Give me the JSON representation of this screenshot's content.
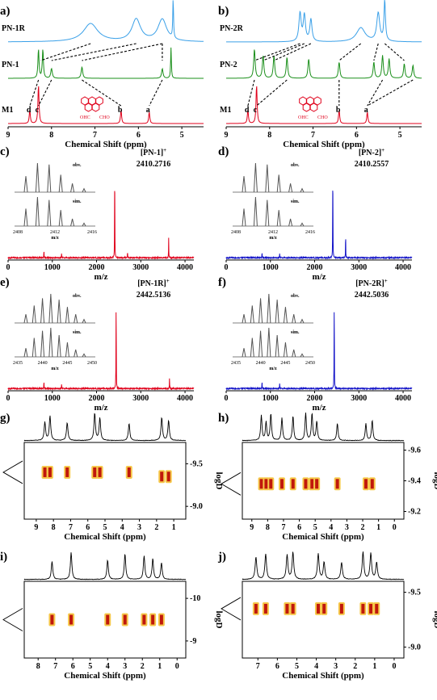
{
  "panels": {
    "a": {
      "label": "a)",
      "traces": [
        "PN-1R",
        "PN-1",
        "M1"
      ],
      "xticks": [
        "9",
        "8",
        "7",
        "6",
        "5"
      ],
      "xlabel": "Chemical Shift (ppm)",
      "peak_labels": [
        "d",
        "c",
        "b",
        "a"
      ],
      "struct_labels": [
        "OHC",
        "CHO"
      ]
    },
    "b": {
      "label": "b)",
      "traces": [
        "PN-2R",
        "PN-2",
        "M1"
      ],
      "xticks": [
        "9",
        "8",
        "7",
        "6",
        "5"
      ],
      "xlabel": "Chemical Shift (ppm)",
      "peak_labels": [
        "d",
        "c",
        "b",
        "a"
      ],
      "struct_labels": [
        "OHC",
        "CHO"
      ]
    },
    "c": {
      "label": "c)",
      "ion": "[PN-1]",
      "charge": "+",
      "mass": "2410.2716",
      "obv": "obv.",
      "sim": "sim.",
      "inset_xticks": [
        "2408",
        "2412",
        "2416"
      ],
      "inset_xlabel": "m/z",
      "xticks": [
        "0",
        "1000",
        "2000",
        "3000",
        "4000"
      ],
      "xlabel": "m/z"
    },
    "d": {
      "label": "d)",
      "ion": "[PN-2]",
      "charge": "+",
      "mass": "2410.2557",
      "obv": "obv.",
      "sim": "sim.",
      "inset_xticks": [
        "2408",
        "2412",
        "2416"
      ],
      "inset_xlabel": "m/z",
      "xticks": [
        "0",
        "1000",
        "2000",
        "3000",
        "4000"
      ],
      "xlabel": "m/z"
    },
    "e": {
      "label": "e)",
      "ion": "[PN-1R]",
      "charge": "+",
      "mass": "2442.5136",
      "obv": "obv.",
      "sim": "sim.",
      "inset_xticks": [
        "2435",
        "2440",
        "2445",
        "2450"
      ],
      "inset_xlabel": "m/z",
      "xticks": [
        "0",
        "1000",
        "2000",
        "3000",
        "4000"
      ],
      "xlabel": "m/z"
    },
    "f": {
      "label": "f)",
      "ion": "[PN-2R]",
      "charge": "+",
      "mass": "2442.5036",
      "obv": "obv.",
      "sim": "sim.",
      "inset_xticks": [
        "2435",
        "2440",
        "2445",
        "2450"
      ],
      "inset_xlabel": "m/z",
      "xticks": [
        "0",
        "1000",
        "2000",
        "3000",
        "4000"
      ],
      "xlabel": "m/z"
    },
    "g": {
      "label": "g)",
      "xticks": [
        "9",
        "8",
        "7",
        "6",
        "5",
        "4",
        "3",
        "2",
        "1"
      ],
      "yticks": [
        "-9.5",
        "-9.0"
      ],
      "ylabel": "logD",
      "xlabel": "Chemical Shift (ppm)"
    },
    "h": {
      "label": "h)",
      "xticks": [
        "9",
        "8",
        "7",
        "6",
        "5",
        "4",
        "3",
        "2",
        "1",
        "0"
      ],
      "yticks": [
        "-9.6",
        "-9.4",
        "-9.2"
      ],
      "ylabel": "logD",
      "xlabel": "Chemical Shift (ppm)"
    },
    "i": {
      "label": "i)",
      "xticks": [
        "8",
        "7",
        "6",
        "5",
        "4",
        "3",
        "2",
        "1",
        "0"
      ],
      "yticks": [
        "-10",
        "-9"
      ],
      "ylabel": "logD",
      "xlabel": "Chemical Shift (ppm)"
    },
    "j": {
      "label": "j)",
      "xticks": [
        "7",
        "6",
        "5",
        "4",
        "3",
        "2",
        "1",
        "0"
      ],
      "yticks": [
        "-9.5",
        "-9.0"
      ],
      "ylabel": "logD",
      "xlabel": "Chemical Shift (ppm)"
    }
  },
  "colors": {
    "red": "#e0001b",
    "green": "#1a8f1a",
    "lightblue": "#3aa0e8",
    "blue": "#1414c8",
    "gray": "#555555",
    "dosy_dark": "#c0180c",
    "dosy_light": "#f6c84a"
  },
  "chart_data": [
    {
      "panel": "a",
      "type": "line",
      "series": [
        {
          "name": "PN-1R",
          "color": "#3aa0e8",
          "peaks": [
            {
              "ppm": 7.1,
              "h": 0.45,
              "w": 0.2
            },
            {
              "ppm": 6.05,
              "h": 0.55,
              "w": 0.12
            },
            {
              "ppm": 5.45,
              "h": 0.55,
              "w": 0.12
            },
            {
              "ppm": 5.2,
              "h": 1.0,
              "w": 0.01
            }
          ]
        },
        {
          "name": "PN-1",
          "color": "#1a8f1a",
          "peaks": [
            {
              "ppm": 8.3,
              "h": 0.9,
              "w": 0.015
            },
            {
              "ppm": 8.2,
              "h": 0.9,
              "w": 0.015
            },
            {
              "ppm": 8.0,
              "h": 0.3,
              "w": 0.02
            },
            {
              "ppm": 7.3,
              "h": 0.35,
              "w": 0.02
            },
            {
              "ppm": 5.45,
              "h": 0.3,
              "w": 0.02
            },
            {
              "ppm": 5.25,
              "h": 0.95,
              "w": 0.01
            }
          ]
        },
        {
          "name": "M1",
          "color": "#e0001b",
          "peaks": [
            {
              "ppm": 8.5,
              "h": 0.35,
              "w": 0.015
            },
            {
              "ppm": 8.3,
              "h": 1.0,
              "w": 0.015
            },
            {
              "ppm": 6.4,
              "h": 0.35,
              "w": 0.015
            },
            {
              "ppm": 5.75,
              "h": 0.3,
              "w": 0.015
            }
          ]
        }
      ],
      "xlim": [
        9,
        4.5
      ]
    },
    {
      "panel": "b",
      "type": "line",
      "series": [
        {
          "name": "PN-2R",
          "color": "#3aa0e8",
          "peaks": [
            {
              "ppm": 7.3,
              "h": 0.7,
              "w": 0.03
            },
            {
              "ppm": 7.2,
              "h": 0.65,
              "w": 0.03
            },
            {
              "ppm": 7.05,
              "h": 0.55,
              "w": 0.03
            },
            {
              "ppm": 5.9,
              "h": 0.35,
              "w": 0.12
            },
            {
              "ppm": 5.5,
              "h": 0.7,
              "w": 0.04
            },
            {
              "ppm": 5.35,
              "h": 1.0,
              "w": 0.02
            }
          ]
        },
        {
          "name": "PN-2",
          "color": "#1a8f1a",
          "peaks": [
            {
              "ppm": 8.35,
              "h": 0.9,
              "w": 0.02
            },
            {
              "ppm": 8.15,
              "h": 0.7,
              "w": 0.02
            },
            {
              "ppm": 7.9,
              "h": 0.7,
              "w": 0.02
            },
            {
              "ppm": 7.6,
              "h": 0.65,
              "w": 0.02
            },
            {
              "ppm": 7.1,
              "h": 0.6,
              "w": 0.02
            },
            {
              "ppm": 6.4,
              "h": 0.5,
              "w": 0.02
            },
            {
              "ppm": 5.6,
              "h": 0.5,
              "w": 0.02
            },
            {
              "ppm": 5.4,
              "h": 0.7,
              "w": 0.02
            },
            {
              "ppm": 5.25,
              "h": 0.6,
              "w": 0.02
            },
            {
              "ppm": 4.9,
              "h": 0.45,
              "w": 0.02
            },
            {
              "ppm": 4.7,
              "h": 0.4,
              "w": 0.02
            }
          ]
        },
        {
          "name": "M1",
          "color": "#e0001b",
          "peaks": [
            {
              "ppm": 8.5,
              "h": 0.35,
              "w": 0.015
            },
            {
              "ppm": 8.3,
              "h": 1.0,
              "w": 0.015
            },
            {
              "ppm": 6.4,
              "h": 0.35,
              "w": 0.015
            },
            {
              "ppm": 5.75,
              "h": 0.3,
              "w": 0.015
            }
          ]
        }
      ],
      "xlim": [
        9,
        4.5
      ]
    },
    {
      "panel": "c",
      "type": "line",
      "xlim": [
        0,
        4200
      ],
      "color": "#e0001b",
      "peaks": [
        {
          "mz": 810,
          "h": 0.08
        },
        {
          "mz": 1210,
          "h": 0.05
        },
        {
          "mz": 2410.2716,
          "h": 1.0
        },
        {
          "mz": 2700,
          "h": 0.06
        },
        {
          "mz": 3630,
          "h": 0.2
        }
      ],
      "inset": {
        "obv": [
          0.55,
          1.0,
          0.95,
          0.6,
          0.3,
          0.12
        ],
        "sim": [
          0.6,
          1.0,
          0.9,
          0.55,
          0.25,
          0.1
        ]
      }
    },
    {
      "panel": "d",
      "type": "line",
      "xlim": [
        0,
        4200
      ],
      "color": "#1414c8",
      "peaks": [
        {
          "mz": 810,
          "h": 0.06
        },
        {
          "mz": 1210,
          "h": 0.05
        },
        {
          "mz": 2410.2557,
          "h": 1.0
        },
        {
          "mz": 2700,
          "h": 0.25
        }
      ],
      "inset": {
        "obv": [
          0.55,
          1.0,
          0.95,
          0.6,
          0.3,
          0.12
        ],
        "sim": [
          0.6,
          1.0,
          0.9,
          0.55,
          0.25,
          0.1
        ]
      }
    },
    {
      "panel": "e",
      "type": "line",
      "xlim": [
        0,
        4200
      ],
      "color": "#e0001b",
      "peaks": [
        {
          "mz": 810,
          "h": 0.08
        },
        {
          "mz": 1210,
          "h": 0.05
        },
        {
          "mz": 2442.5136,
          "h": 1.0
        },
        {
          "mz": 3650,
          "h": 0.1
        }
      ],
      "inset": {
        "obv": [
          0.3,
          0.6,
          0.85,
          1.0,
          0.8,
          0.55,
          0.3,
          0.12
        ],
        "sim": [
          0.3,
          0.65,
          0.9,
          1.0,
          0.75,
          0.5,
          0.25,
          0.1
        ]
      }
    },
    {
      "panel": "f",
      "type": "line",
      "xlim": [
        0,
        4200
      ],
      "color": "#1414c8",
      "peaks": [
        {
          "mz": 810,
          "h": 0.08
        },
        {
          "mz": 1210,
          "h": 0.06
        },
        {
          "mz": 2442.5036,
          "h": 1.0
        }
      ],
      "inset": {
        "obv": [
          0.3,
          0.6,
          0.85,
          1.0,
          0.8,
          0.55,
          0.3,
          0.12
        ],
        "sim": [
          0.3,
          0.65,
          0.9,
          1.0,
          0.75,
          0.5,
          0.25,
          0.1
        ]
      }
    },
    {
      "panel": "g",
      "type": "heatmap",
      "xlim": [
        9.7,
        0.3
      ],
      "ylim": [
        -9.75,
        -8.85
      ],
      "spots": [
        {
          "ppm": 8.5,
          "logD": -9.4
        },
        {
          "ppm": 8.2,
          "logD": -9.4
        },
        {
          "ppm": 7.2,
          "logD": -9.4
        },
        {
          "ppm": 5.6,
          "logD": -9.4
        },
        {
          "ppm": 5.3,
          "logD": -9.4
        },
        {
          "ppm": 3.6,
          "logD": -9.4
        },
        {
          "ppm": 1.7,
          "logD": -9.35
        },
        {
          "ppm": 1.3,
          "logD": -9.35
        }
      ]
    },
    {
      "panel": "h",
      "type": "heatmap",
      "xlim": [
        9.6,
        -0.6
      ],
      "ylim": [
        -9.65,
        -9.15
      ],
      "spots": [
        {
          "ppm": 8.4,
          "logD": -9.38
        },
        {
          "ppm": 8.1,
          "logD": -9.38
        },
        {
          "ppm": 7.8,
          "logD": -9.38
        },
        {
          "ppm": 7.1,
          "logD": -9.38
        },
        {
          "ppm": 6.4,
          "logD": -9.38
        },
        {
          "ppm": 5.6,
          "logD": -9.38
        },
        {
          "ppm": 5.2,
          "logD": -9.38
        },
        {
          "ppm": 4.9,
          "logD": -9.38
        },
        {
          "ppm": 3.6,
          "logD": -9.38
        },
        {
          "ppm": 1.8,
          "logD": -9.38
        },
        {
          "ppm": 1.4,
          "logD": -9.38
        }
      ]
    },
    {
      "panel": "i",
      "type": "heatmap",
      "xlim": [
        8.8,
        -0.5
      ],
      "ylim": [
        -10.4,
        -8.6
      ],
      "spots": [
        {
          "ppm": 7.2,
          "logD": -9.5
        },
        {
          "ppm": 6.1,
          "logD": -9.5
        },
        {
          "ppm": 4.0,
          "logD": -9.5
        },
        {
          "ppm": 3.0,
          "logD": -9.5
        },
        {
          "ppm": 1.9,
          "logD": -9.5
        },
        {
          "ppm": 1.4,
          "logD": -9.5
        },
        {
          "ppm": 0.9,
          "logD": -9.5
        }
      ]
    },
    {
      "panel": "j",
      "type": "heatmap",
      "xlim": [
        7.8,
        -0.5
      ],
      "ylim": [
        -9.6,
        -8.9
      ],
      "spots": [
        {
          "ppm": 7.1,
          "logD": -9.35
        },
        {
          "ppm": 6.6,
          "logD": -9.35
        },
        {
          "ppm": 5.5,
          "logD": -9.35
        },
        {
          "ppm": 5.2,
          "logD": -9.35
        },
        {
          "ppm": 3.9,
          "logD": -9.35
        },
        {
          "ppm": 3.6,
          "logD": -9.35
        },
        {
          "ppm": 2.7,
          "logD": -9.35
        },
        {
          "ppm": 1.6,
          "logD": -9.35
        },
        {
          "ppm": 1.2,
          "logD": -9.35
        },
        {
          "ppm": 0.9,
          "logD": -9.35
        }
      ]
    }
  ]
}
